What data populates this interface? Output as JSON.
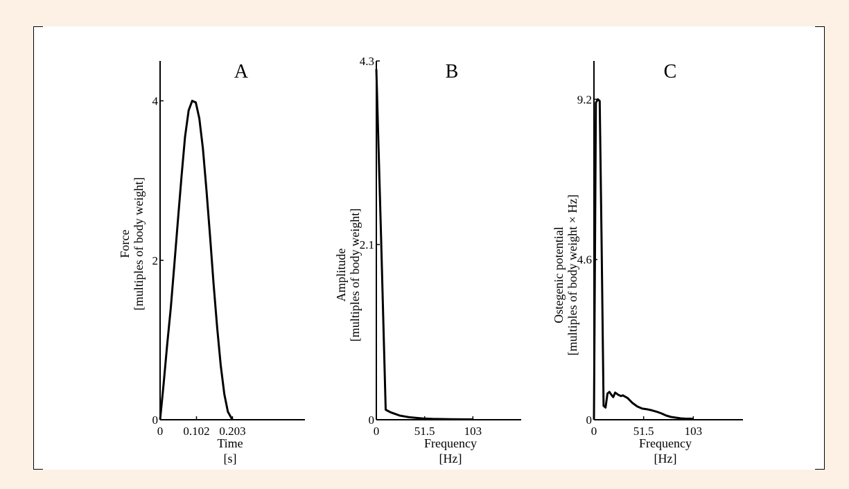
{
  "chart_data": [
    {
      "type": "line",
      "panel_label": "A",
      "xlabel": "Time",
      "xunit": "[s]",
      "ylabel": "Force",
      "yunit": "[multiples of body weight]",
      "xlim": [
        0,
        0.406
      ],
      "ylim": [
        0,
        4.5
      ],
      "xticks": [
        0,
        0.102,
        0.203
      ],
      "xtick_labels": [
        "0",
        "0.102",
        "0.203"
      ],
      "yticks": [
        0,
        2,
        4
      ],
      "ytick_labels": [
        "0",
        "2",
        "4"
      ],
      "grid": false,
      "x": [
        0,
        0.01,
        0.02,
        0.03,
        0.04,
        0.05,
        0.06,
        0.07,
        0.08,
        0.09,
        0.1,
        0.11,
        0.12,
        0.13,
        0.14,
        0.15,
        0.16,
        0.17,
        0.18,
        0.19,
        0.2,
        0.203
      ],
      "y": [
        0,
        0.45,
        0.95,
        1.4,
        1.95,
        2.5,
        3.05,
        3.55,
        3.88,
        4.0,
        3.98,
        3.78,
        3.4,
        2.88,
        2.3,
        1.7,
        1.15,
        0.68,
        0.32,
        0.1,
        0.02,
        0
      ]
    },
    {
      "type": "line",
      "panel_label": "B",
      "xlabel": "Frequency",
      "xunit": "[Hz]",
      "ylabel": "Amplitude",
      "yunit": "[multiples of body weight]",
      "xlim": [
        0,
        154.5
      ],
      "ylim": [
        0,
        4.3
      ],
      "xticks": [
        0,
        51.5,
        103
      ],
      "xtick_labels": [
        "0",
        "51.5",
        "103"
      ],
      "yticks": [
        0,
        2.1,
        4.3
      ],
      "ytick_labels": [
        "0",
        "2.1",
        "4.3"
      ],
      "grid": false,
      "x": [
        0,
        5,
        10,
        15,
        20,
        25,
        30,
        35,
        40,
        45,
        50,
        60,
        70,
        80,
        90,
        100,
        103
      ],
      "y": [
        4.2,
        2.2,
        0.12,
        0.09,
        0.07,
        0.05,
        0.04,
        0.03,
        0.025,
        0.02,
        0.015,
        0.01,
        0.008,
        0.006,
        0.005,
        0.004,
        0.004
      ]
    },
    {
      "type": "line",
      "panel_label": "C",
      "xlabel": "Frequency",
      "xunit": "[Hz]",
      "ylabel": "Ostegenic potential",
      "yunit": "[multiples of body weight × Hz]",
      "xlim": [
        0,
        154.5
      ],
      "ylim": [
        0,
        10.3
      ],
      "xticks": [
        0,
        51.5,
        103
      ],
      "xtick_labels": [
        "0",
        "51.5",
        "103"
      ],
      "yticks": [
        0,
        4.6,
        9.2
      ],
      "ytick_labels": [
        "0",
        "4.6",
        "9.2"
      ],
      "grid": false,
      "x": [
        0,
        2,
        4,
        6,
        8,
        10,
        12,
        14,
        16,
        18,
        20,
        22,
        25,
        28,
        30,
        35,
        40,
        45,
        50,
        55,
        60,
        65,
        70,
        75,
        80,
        85,
        90,
        95,
        100,
        103
      ],
      "y": [
        0,
        9.1,
        9.2,
        9.15,
        5.0,
        0.4,
        0.35,
        0.75,
        0.8,
        0.72,
        0.65,
        0.78,
        0.72,
        0.68,
        0.7,
        0.62,
        0.48,
        0.38,
        0.32,
        0.3,
        0.27,
        0.23,
        0.18,
        0.12,
        0.08,
        0.06,
        0.04,
        0.03,
        0.03,
        0.02
      ]
    }
  ]
}
